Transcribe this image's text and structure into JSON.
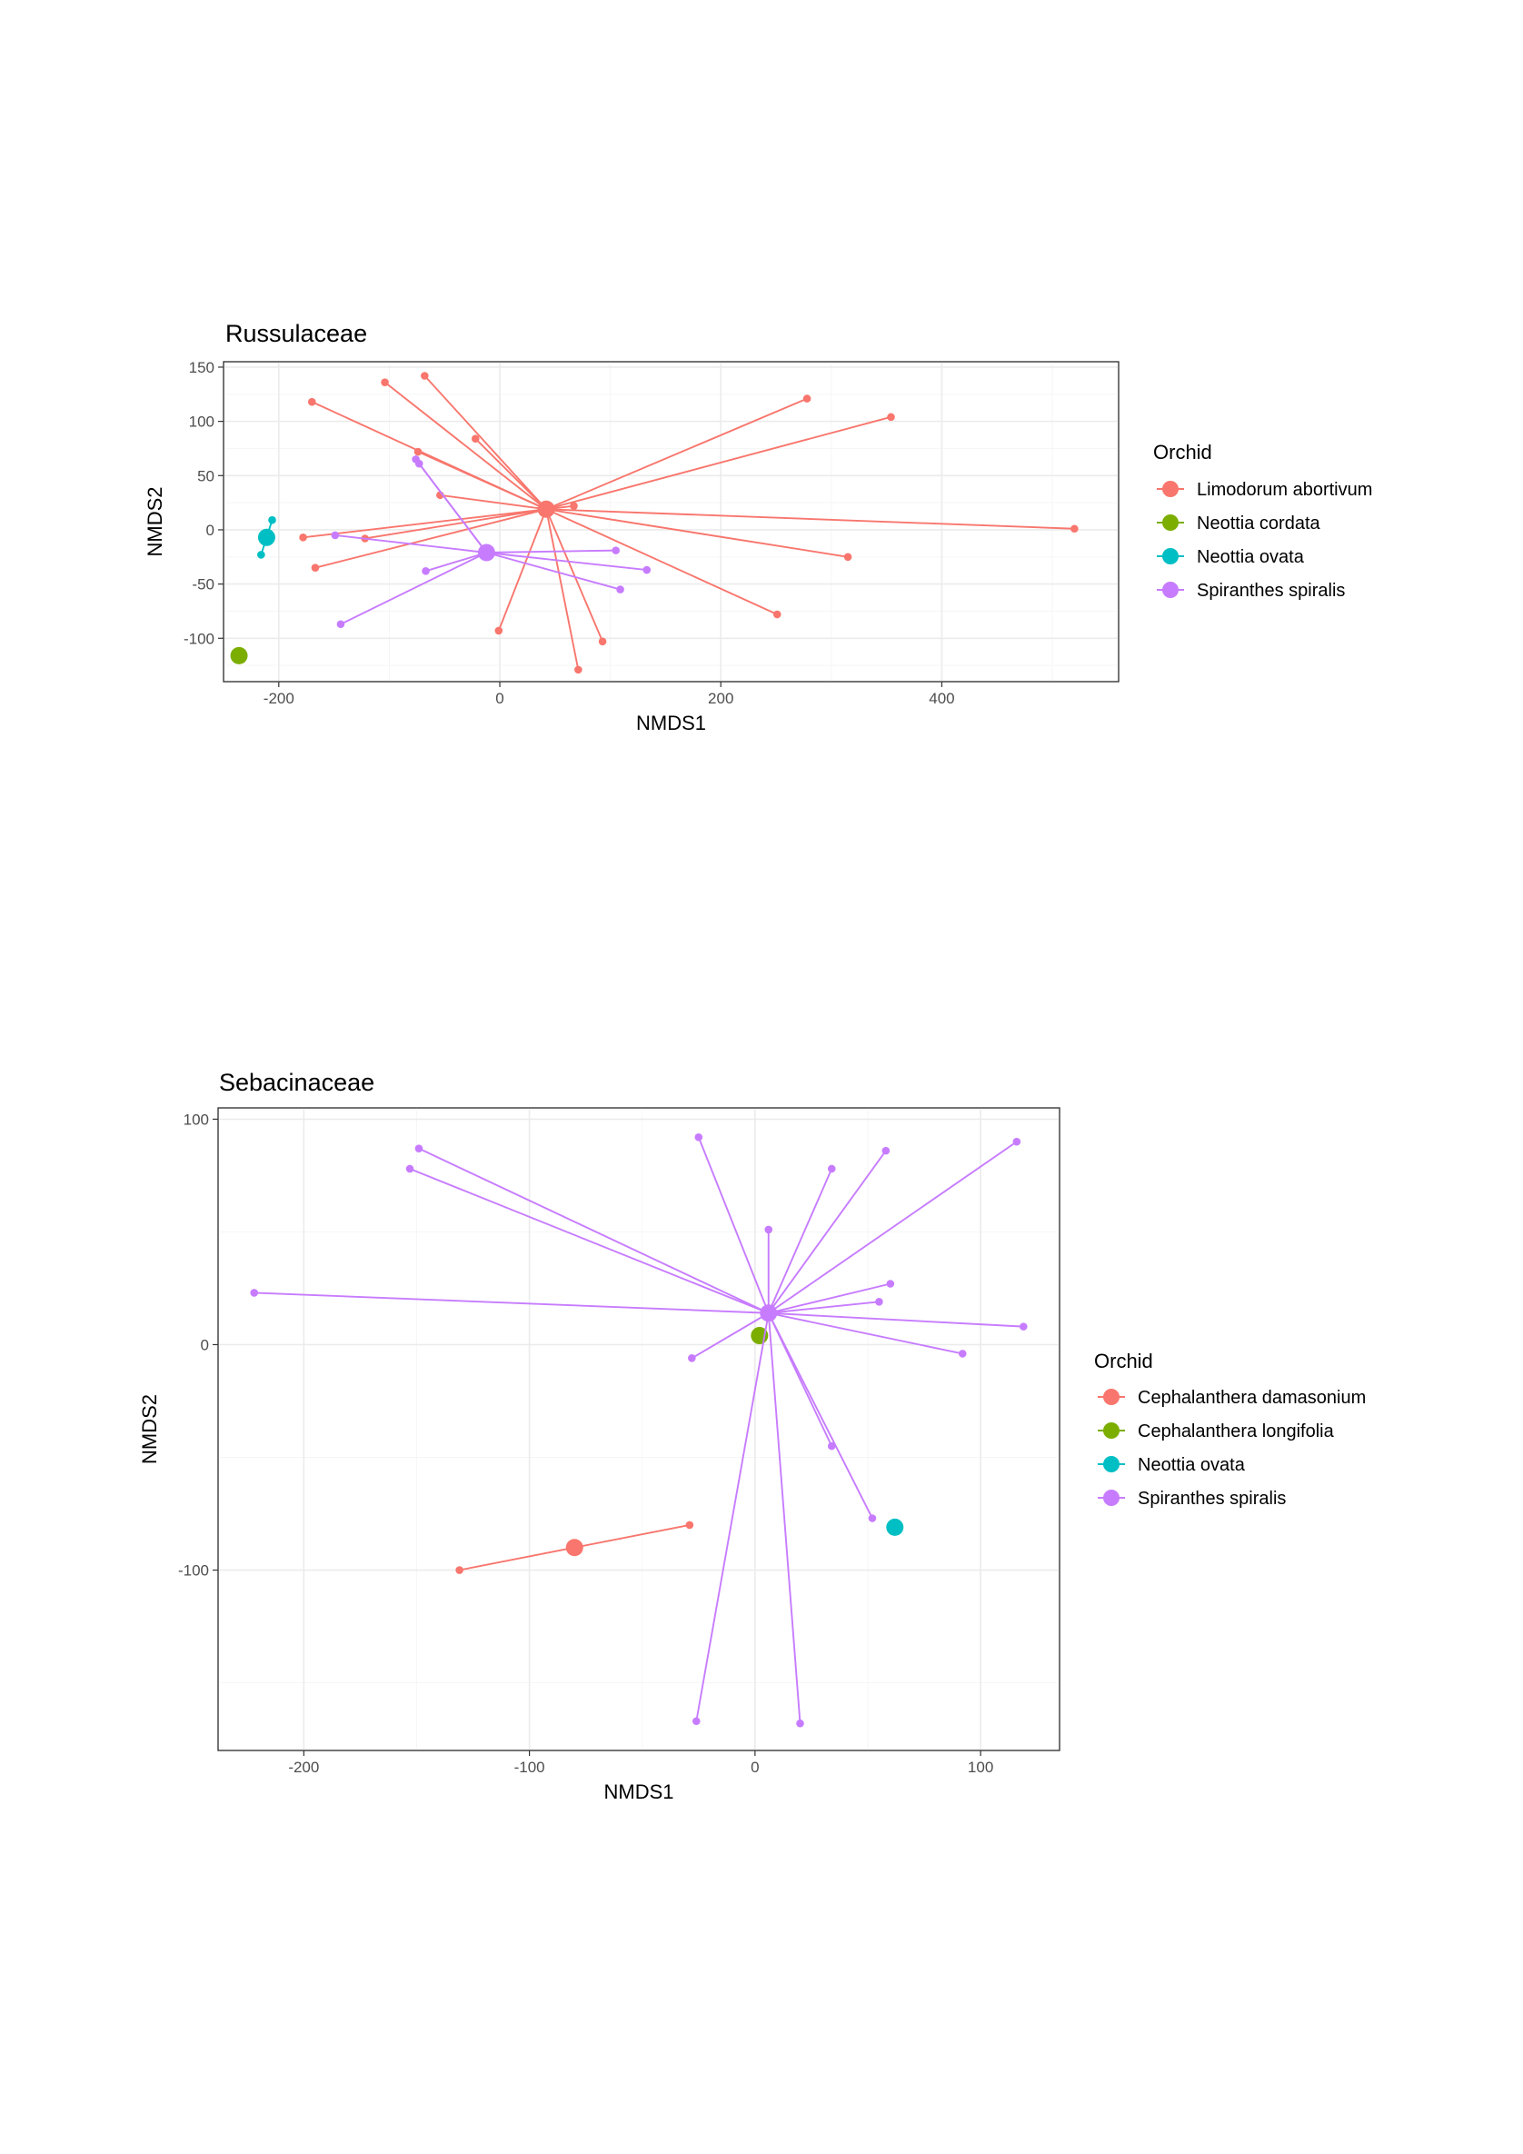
{
  "chart_data": [
    {
      "type": "scatter",
      "title": "Russulaceae",
      "xlabel": "NMDS1",
      "ylabel": "NMDS2",
      "xlim": [
        -250,
        560
      ],
      "ylim": [
        -140,
        155
      ],
      "xticks": [
        -200,
        0,
        200,
        400
      ],
      "xticklabels": [
        "-200",
        "0",
        "200",
        "400"
      ],
      "yticks": [
        -100,
        -50,
        0,
        50,
        100,
        150
      ],
      "yticklabels": [
        "-100",
        "-50",
        "0",
        "50",
        "100",
        "150"
      ],
      "grid": true,
      "legend": {
        "title": "Orchid",
        "position": "right"
      },
      "series": [
        {
          "name": "Limodorum abortivum",
          "color": "#F8766D",
          "centroid": [
            42,
            19
          ],
          "points": [
            [
              -104,
              136
            ],
            [
              -68,
              142
            ],
            [
              -170,
              118
            ],
            [
              -22,
              84
            ],
            [
              -74,
              72
            ],
            [
              -54,
              32
            ],
            [
              67,
              22
            ],
            [
              -178,
              -7
            ],
            [
              -122,
              -8
            ],
            [
              -167,
              -35
            ],
            [
              -1,
              -93
            ],
            [
              93,
              -103
            ],
            [
              71,
              -129
            ],
            [
              251,
              -78
            ],
            [
              315,
              -25
            ],
            [
              278,
              121
            ],
            [
              354,
              104
            ],
            [
              520,
              1
            ]
          ]
        },
        {
          "name": "Neottia cordata",
          "color": "#7CAE00",
          "centroid": [
            -236,
            -116
          ],
          "points": []
        },
        {
          "name": "Neottia ovata",
          "color": "#00BFC4",
          "centroid": [
            -211,
            -7
          ],
          "points": [
            [
              -206,
              9
            ],
            [
              -216,
              -23
            ]
          ]
        },
        {
          "name": "Spiranthes spiralis",
          "color": "#C77CFF",
          "centroid": [
            -12,
            -21
          ],
          "points": [
            [
              -76,
              65
            ],
            [
              -73,
              61
            ],
            [
              -149,
              -5
            ],
            [
              -67,
              -38
            ],
            [
              -144,
              -87
            ],
            [
              105,
              -19
            ],
            [
              133,
              -37
            ],
            [
              109,
              -55
            ]
          ]
        }
      ]
    },
    {
      "type": "scatter",
      "title": "Sebacinaceae",
      "xlabel": "NMDS1",
      "ylabel": "NMDS2",
      "xlim": [
        -238,
        135
      ],
      "ylim": [
        -180,
        105
      ],
      "xticks": [
        -200,
        -100,
        0,
        100
      ],
      "xticklabels": [
        "-200",
        "-100",
        "0",
        "100"
      ],
      "yticks": [
        -100,
        0,
        100
      ],
      "yticklabels": [
        "-100",
        "0",
        "100"
      ],
      "grid": true,
      "legend": {
        "title": "Orchid",
        "position": "right"
      },
      "series": [
        {
          "name": "Cephalanthera damasonium",
          "color": "#F8766D",
          "centroid": [
            -80,
            -90
          ],
          "points": [
            [
              -131,
              -100
            ],
            [
              -29,
              -80
            ]
          ]
        },
        {
          "name": "Cephalanthera longifolia",
          "color": "#7CAE00",
          "centroid": [
            2,
            4
          ],
          "points": []
        },
        {
          "name": "Neottia ovata",
          "color": "#00BFC4",
          "centroid": [
            62,
            -81
          ],
          "points": []
        },
        {
          "name": "Spiranthes spiralis",
          "color": "#C77CFF",
          "centroid": [
            6,
            14
          ],
          "points": [
            [
              -149,
              87
            ],
            [
              -153,
              78
            ],
            [
              -222,
              23
            ],
            [
              -25,
              92
            ],
            [
              6,
              51
            ],
            [
              34,
              78
            ],
            [
              58,
              86
            ],
            [
              116,
              90
            ],
            [
              60,
              27
            ],
            [
              55,
              19
            ],
            [
              119,
              8
            ],
            [
              92,
              -4
            ],
            [
              -28,
              -6
            ],
            [
              34,
              -45
            ],
            [
              52,
              -77
            ],
            [
              -26,
              -167
            ],
            [
              20,
              -168
            ]
          ]
        }
      ]
    }
  ]
}
